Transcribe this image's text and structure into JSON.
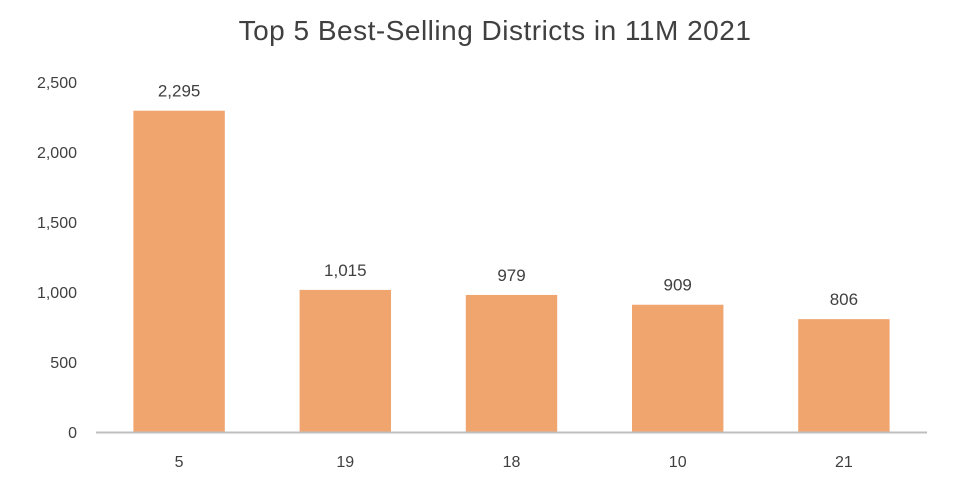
{
  "colors": {
    "bar": "#F0A46E",
    "axis": "#BFBFBF",
    "text": "#404040",
    "background": "#FFFFFF"
  },
  "chart_data": {
    "type": "bar",
    "title": "Top 5 Best-Selling Districts in 11M 2021",
    "xlabel": "",
    "ylabel": "",
    "categories": [
      "5",
      "19",
      "18",
      "10",
      "21"
    ],
    "values": [
      2295,
      1015,
      979,
      909,
      806
    ],
    "data_labels": [
      "2,295",
      "1,015",
      "979",
      "909",
      "806"
    ],
    "ylim": [
      0,
      2500
    ],
    "y_ticks": [
      0,
      500,
      1000,
      1500,
      2000,
      2500
    ],
    "y_tick_labels": [
      "0",
      "500",
      "1,000",
      "1,500",
      "2,000",
      "2,500"
    ],
    "grid": false,
    "legend": "none"
  }
}
